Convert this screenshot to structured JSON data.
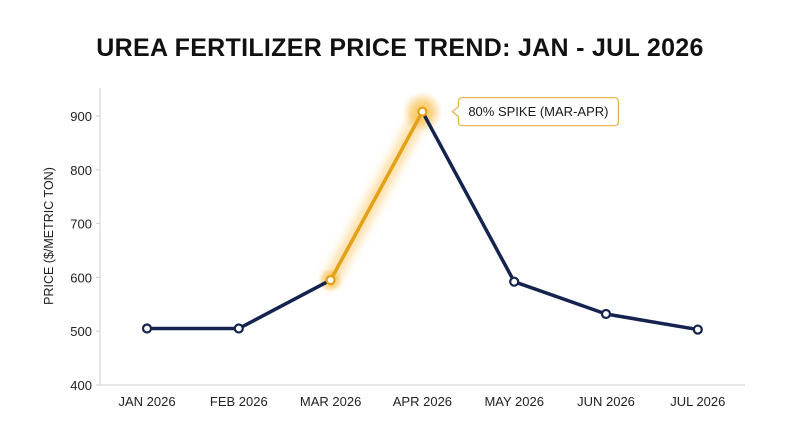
{
  "chart_data": {
    "type": "line",
    "title": "UREA FERTILIZER PRICE TREND: JAN - JUL 2026",
    "xlabel": "",
    "ylabel": "PRICE ($/METRIC TON)",
    "categories": [
      "JAN 2026",
      "FEB 2026",
      "MAR 2026",
      "APR 2026",
      "MAY 2026",
      "JUN 2026",
      "JUL 2026"
    ],
    "series": [
      {
        "values": [
          505,
          505,
          595,
          908,
          592,
          532,
          503
        ]
      }
    ],
    "ylim": [
      400,
      900
    ],
    "yticks": [
      400,
      500,
      600,
      700,
      800,
      900
    ],
    "grid": false,
    "highlight": {
      "from_index": 2,
      "to_index": 3
    },
    "annotation": {
      "text": "80% SPIKE (MAR-APR)",
      "point_index": 3
    },
    "colors": {
      "line": "#15244f",
      "highlight": "#e3a019",
      "glow": "#f7c04a",
      "annotation_border": "#e6b04a"
    }
  }
}
